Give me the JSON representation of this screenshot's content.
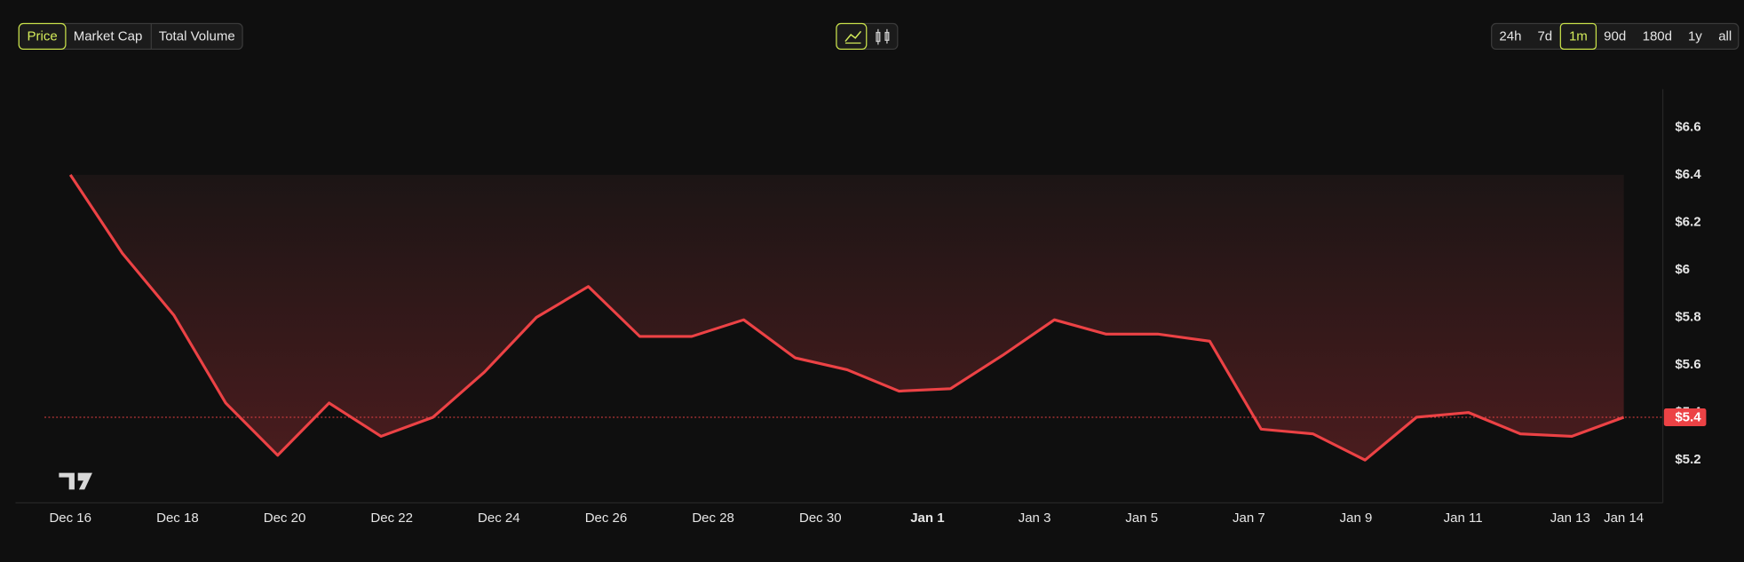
{
  "chart_data": {
    "type": "line",
    "metric_tabs": [
      "Price",
      "Market Cap",
      "Total Volume"
    ],
    "range_tabs": [
      "24h",
      "7d",
      "1m",
      "90d",
      "180d",
      "1y",
      "all"
    ],
    "x": [
      0,
      0.97,
      1.93,
      2.9,
      3.87,
      4.83,
      5.8,
      6.77,
      7.73,
      8.7,
      9.67,
      10.63,
      11.6,
      12.57,
      13.53,
      14.5,
      15.47,
      16.43,
      17.4,
      18.37,
      19.33,
      20.3,
      21.27,
      22.23,
      23.2,
      24.17,
      25.13,
      26.1,
      27.07,
      28.03,
      29
    ],
    "series": [
      {
        "name": "Price",
        "color": "#ec4245",
        "values": [
          6.4,
          6.07,
          5.81,
          5.44,
          5.22,
          5.44,
          5.3,
          5.38,
          5.57,
          5.8,
          5.93,
          5.72,
          5.72,
          5.79,
          5.63,
          5.58,
          5.49,
          5.5,
          5.64,
          5.79,
          5.73,
          5.73,
          5.7,
          5.33,
          5.31,
          5.2,
          5.38,
          5.4,
          5.31,
          5.3,
          5.38
        ]
      }
    ],
    "last_price_label": "$5.4",
    "xlim": [
      -0.4,
      29.5
    ],
    "xticks": [
      {
        "value": 0,
        "label": "Dec 16"
      },
      {
        "value": 2,
        "label": "Dec 18"
      },
      {
        "value": 4,
        "label": "Dec 20"
      },
      {
        "value": 6,
        "label": "Dec 22"
      },
      {
        "value": 8,
        "label": "Dec 24"
      },
      {
        "value": 10,
        "label": "Dec 26"
      },
      {
        "value": 12,
        "label": "Dec 28"
      },
      {
        "value": 14,
        "label": "Dec 30"
      },
      {
        "value": 16,
        "label": "Jan 1"
      },
      {
        "value": 18,
        "label": "Jan 3"
      },
      {
        "value": 20,
        "label": "Jan 5"
      },
      {
        "value": 22,
        "label": "Jan 7"
      },
      {
        "value": 24,
        "label": "Jan 9"
      },
      {
        "value": 26,
        "label": "Jan 11"
      },
      {
        "value": 28,
        "label": "Jan 13"
      },
      {
        "value": 29,
        "label": "Jan 14"
      }
    ],
    "ylim": [
      5.02,
      6.76
    ],
    "yticks": [
      {
        "value": 5.2,
        "label": "$5.2"
      },
      {
        "value": 5.4,
        "label": "$5.4"
      },
      {
        "value": 5.6,
        "label": "$5.6"
      },
      {
        "value": 5.8,
        "label": "$5.8"
      },
      {
        "value": 6,
        "label": "$6"
      },
      {
        "value": 6.2,
        "label": "$6.2"
      },
      {
        "value": 6.4,
        "label": "$6.4"
      },
      {
        "value": 6.6,
        "label": "$6.6"
      }
    ]
  }
}
